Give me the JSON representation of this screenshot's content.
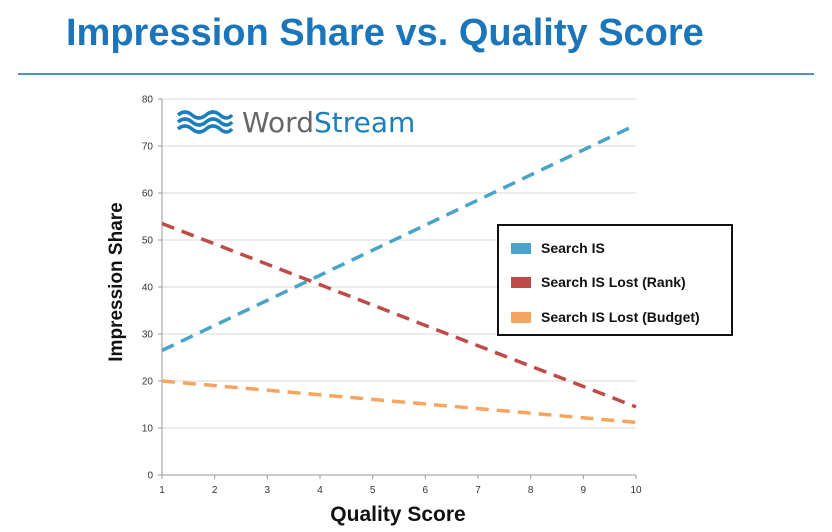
{
  "slide": {
    "title": "Impression Share vs. Quality Score"
  },
  "logo": {
    "icon": "wave-icon",
    "text_part1": "Word",
    "text_part2": "Stream"
  },
  "colors": {
    "title": "#1b75bb",
    "search_is": "#4aa3c8",
    "lost_rank": "#be4b48",
    "lost_budget": "#f6a55f"
  },
  "chart_data": {
    "type": "line",
    "x": [
      1,
      10
    ],
    "xlabel": "Quality Score",
    "ylabel": "Impression Share",
    "xticks": [
      1,
      2,
      3,
      4,
      5,
      6,
      7,
      8,
      9,
      10
    ],
    "yticks": [
      0,
      10,
      20,
      30,
      40,
      50,
      60,
      70,
      80
    ],
    "xlim": [
      1,
      10
    ],
    "ylim": [
      0,
      80
    ],
    "grid": "horizontal",
    "line_style": "dashed",
    "legend_position": "right",
    "series": [
      {
        "name": "Search IS",
        "values": [
          26.5,
          74.5
        ],
        "color": "#4aa3c8"
      },
      {
        "name": "Search IS Lost (Rank)",
        "values": [
          53.5,
          14.5
        ],
        "color": "#be4b48"
      },
      {
        "name": "Search IS Lost (Budget)",
        "values": [
          20,
          11.2
        ],
        "color": "#f6a55f"
      }
    ]
  }
}
